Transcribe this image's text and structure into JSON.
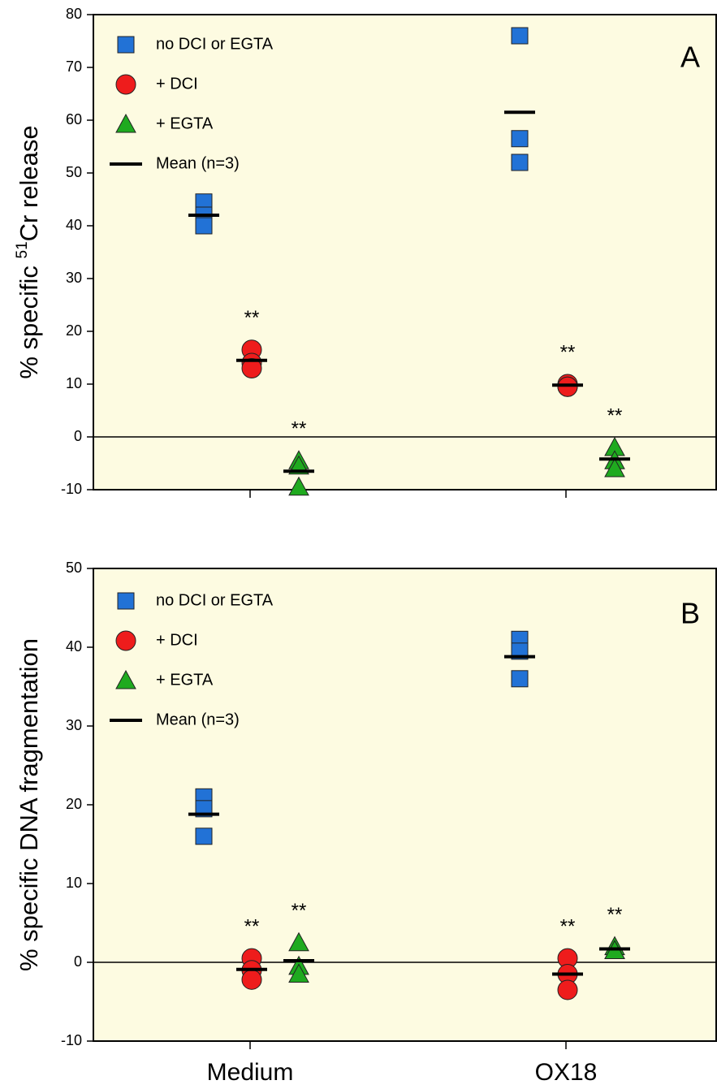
{
  "chart_data": [
    {
      "type": "strip",
      "panel": "A",
      "y_label": [
        "% specific ",
        "51",
        "Cr release"
      ],
      "ylim": [
        -10,
        80
      ],
      "yticks": [
        -10,
        0,
        10,
        20,
        30,
        40,
        50,
        60,
        70,
        80
      ],
      "zero_line": true,
      "mean_label": "Mean (n=3)",
      "series": [
        {
          "name": "no DCI or EGTA",
          "marker": "square",
          "color": "#2272d6",
          "values": [
            [
              44.5,
              42,
              40
            ],
            [
              76,
              56.5,
              52
            ]
          ],
          "means": [
            42,
            61.5
          ]
        },
        {
          "name": "+ DCI",
          "marker": "circle",
          "color": "#ee1c1c",
          "values": [
            [
              16.5,
              14,
              13
            ],
            [
              10,
              9.5,
              9.5
            ]
          ],
          "means": [
            14.5,
            9.8
          ],
          "significance": [
            "**",
            "**"
          ]
        },
        {
          "name": "+ EGTA",
          "marker": "triangle",
          "color": "#1faa1f",
          "values": [
            [
              -4.5,
              -5.5,
              -9.5
            ],
            [
              -2,
              -4.5,
              -6
            ]
          ],
          "means": [
            -6.5,
            -4.2
          ],
          "significance": [
            "**",
            "**"
          ]
        }
      ]
    },
    {
      "type": "strip",
      "panel": "B",
      "y_label": [
        "% specific DNA fragmentation"
      ],
      "categories": [
        "Medium",
        "OX18"
      ],
      "ylim": [
        -10,
        50
      ],
      "yticks": [
        -10,
        0,
        10,
        20,
        30,
        40,
        50
      ],
      "zero_line": true,
      "mean_label": "Mean (n=3)",
      "series": [
        {
          "name": "no DCI or EGTA",
          "marker": "square",
          "color": "#2272d6",
          "values": [
            [
              21,
              19.5,
              16
            ],
            [
              41,
              39.5,
              36
            ]
          ],
          "means": [
            18.8,
            38.8
          ]
        },
        {
          "name": "+ DCI",
          "marker": "circle",
          "color": "#ee1c1c",
          "values": [
            [
              0.5,
              -1,
              -2.2
            ],
            [
              0.5,
              -1.5,
              -3.5
            ]
          ],
          "means": [
            -0.9,
            -1.5
          ],
          "significance": [
            "**",
            "**"
          ]
        },
        {
          "name": "+ EGTA",
          "marker": "triangle",
          "color": "#1faa1f",
          "values": [
            [
              2.5,
              -0.5,
              -1.5
            ],
            [
              2,
              1.5,
              1.5
            ]
          ],
          "means": [
            0.2,
            1.7
          ],
          "significance": [
            "**",
            "**"
          ]
        }
      ]
    }
  ]
}
